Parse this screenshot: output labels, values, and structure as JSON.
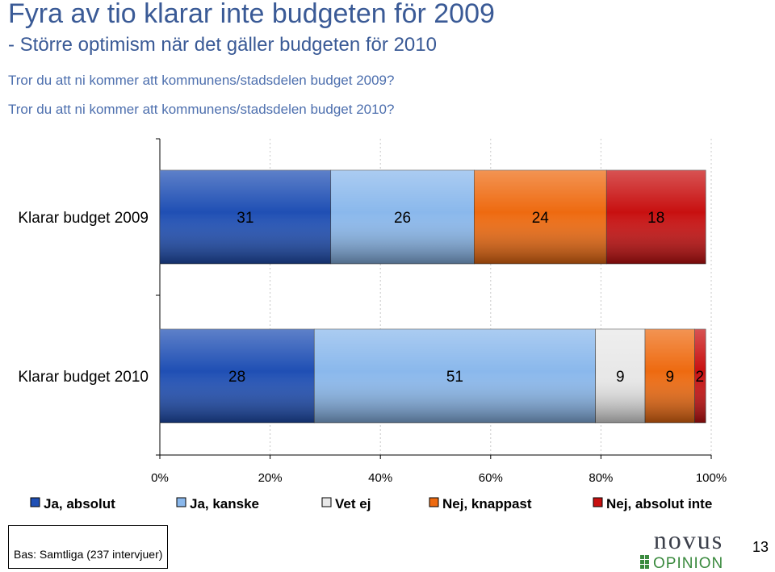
{
  "header": {
    "title": "Fyra av tio klarar inte budgeten för 2009",
    "subtitle": "- Större optimism när det gäller budgeten för 2010",
    "question_2009": "Tror du att ni kommer att kommunens/stadsdelen budget 2009?",
    "question_2010": "Tror du att ni kommer att kommunens/stadsdelen budget 2010?"
  },
  "chart_data": {
    "type": "bar",
    "orientation": "horizontal",
    "stacked": true,
    "percent_stacked": true,
    "title": "",
    "xlabel": "",
    "ylabel": "",
    "categories": [
      "Klarar budget 2009",
      "Klarar budget 2010"
    ],
    "series": [
      {
        "name": "Ja, absolut",
        "values": [
          31,
          28
        ],
        "color": "#1f4fb4"
      },
      {
        "name": "Ja, kanske",
        "values": [
          26,
          51
        ],
        "color": "#8ab8ec"
      },
      {
        "name": "Vet ej",
        "values": [
          0,
          9
        ],
        "color": "#e8e8e8"
      },
      {
        "name": "Nej, knappast",
        "values": [
          24,
          9
        ],
        "color": "#ee6a10"
      },
      {
        "name": "Nej, absolut inte",
        "values": [
          18,
          2
        ],
        "color": "#c81010"
      }
    ],
    "xlim": [
      0,
      100
    ],
    "xticks": [
      "0%",
      "20%",
      "40%",
      "60%",
      "80%",
      "100%"
    ],
    "grid": true,
    "legend_position": "bottom"
  },
  "footer": {
    "base_note": "Bas: Samtliga (237 intervjuer)",
    "logo_top": "novus",
    "logo_bottom": "OPINION",
    "page_number": "13"
  }
}
